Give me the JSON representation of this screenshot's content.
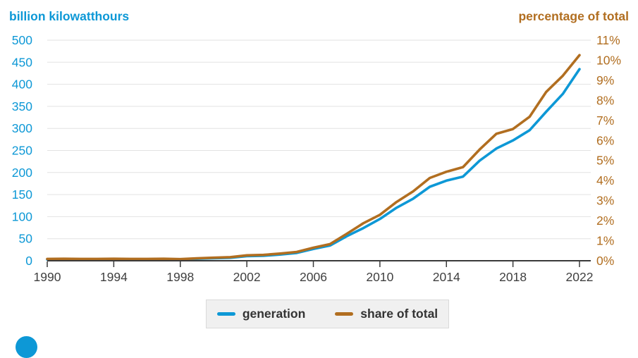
{
  "header": {
    "left_axis_title": "billion kilowatthours",
    "right_axis_title": "percentage of total"
  },
  "colors": {
    "generation_blue": "#0d98d6",
    "share_orange": "#b16e20",
    "axis_text": "#3f3f3f",
    "axis_line": "#3a3a3a",
    "gridline": "#e2e2e2",
    "legend_bg": "#f0f0f0",
    "legend_text": "#333333"
  },
  "legend": {
    "items": [
      {
        "label": "generation",
        "color": "#0d98d6"
      },
      {
        "label": "share of total",
        "color": "#b16e20"
      }
    ]
  },
  "footer": {
    "logo_icon": "eia-logo-circle-partial",
    "logo_color": "#0d98d6"
  },
  "chart_data": {
    "type": "line",
    "title": "",
    "grid": true,
    "legend_position": "bottom",
    "x": [
      1990,
      1991,
      1992,
      1993,
      1994,
      1995,
      1996,
      1997,
      1998,
      1999,
      2000,
      2001,
      2002,
      2003,
      2004,
      2005,
      2006,
      2007,
      2008,
      2009,
      2010,
      2011,
      2012,
      2013,
      2014,
      2015,
      2016,
      2017,
      2018,
      2019,
      2020,
      2021,
      2022
    ],
    "series": [
      {
        "name": "generation",
        "axis": "left",
        "color": "#0d98d6",
        "values": [
          2.8,
          3.0,
          2.9,
          3.0,
          3.4,
          3.2,
          3.2,
          3.3,
          3.0,
          4.5,
          5.6,
          6.7,
          10.4,
          11.2,
          14.1,
          17.8,
          26.6,
          34.5,
          55.4,
          73.9,
          94.7,
          120.2,
          140.8,
          167.8,
          181.7,
          190.7,
          227.0,
          254.3,
          272.7,
          295.9,
          337.9,
          378.2,
          434.3
        ]
      },
      {
        "name": "share of total",
        "axis": "right",
        "color": "#b16e20",
        "values": [
          0.09,
          0.1,
          0.09,
          0.09,
          0.1,
          0.09,
          0.09,
          0.1,
          0.08,
          0.12,
          0.15,
          0.18,
          0.27,
          0.29,
          0.36,
          0.44,
          0.65,
          0.83,
          1.34,
          1.87,
          2.29,
          2.93,
          3.46,
          4.13,
          4.44,
          4.67,
          5.55,
          6.33,
          6.57,
          7.18,
          8.42,
          9.23,
          10.25
        ]
      }
    ],
    "left_axis": {
      "title": "billion kilowatthours",
      "range": [
        0,
        500
      ],
      "ticks": [
        0,
        50,
        100,
        150,
        200,
        250,
        300,
        350,
        400,
        450,
        500
      ],
      "color": "#0d98d6"
    },
    "right_axis": {
      "title": "percentage of total",
      "range": [
        0,
        11
      ],
      "ticks": [
        "0%",
        "1%",
        "2%",
        "3%",
        "4%",
        "5%",
        "6%",
        "7%",
        "8%",
        "9%",
        "10%",
        "11%"
      ],
      "color": "#b16e20"
    },
    "x_axis": {
      "range": [
        1990,
        2022
      ],
      "ticks": [
        1990,
        1994,
        1998,
        2002,
        2006,
        2010,
        2014,
        2018,
        2022
      ],
      "color": "#3f3f3f"
    }
  }
}
